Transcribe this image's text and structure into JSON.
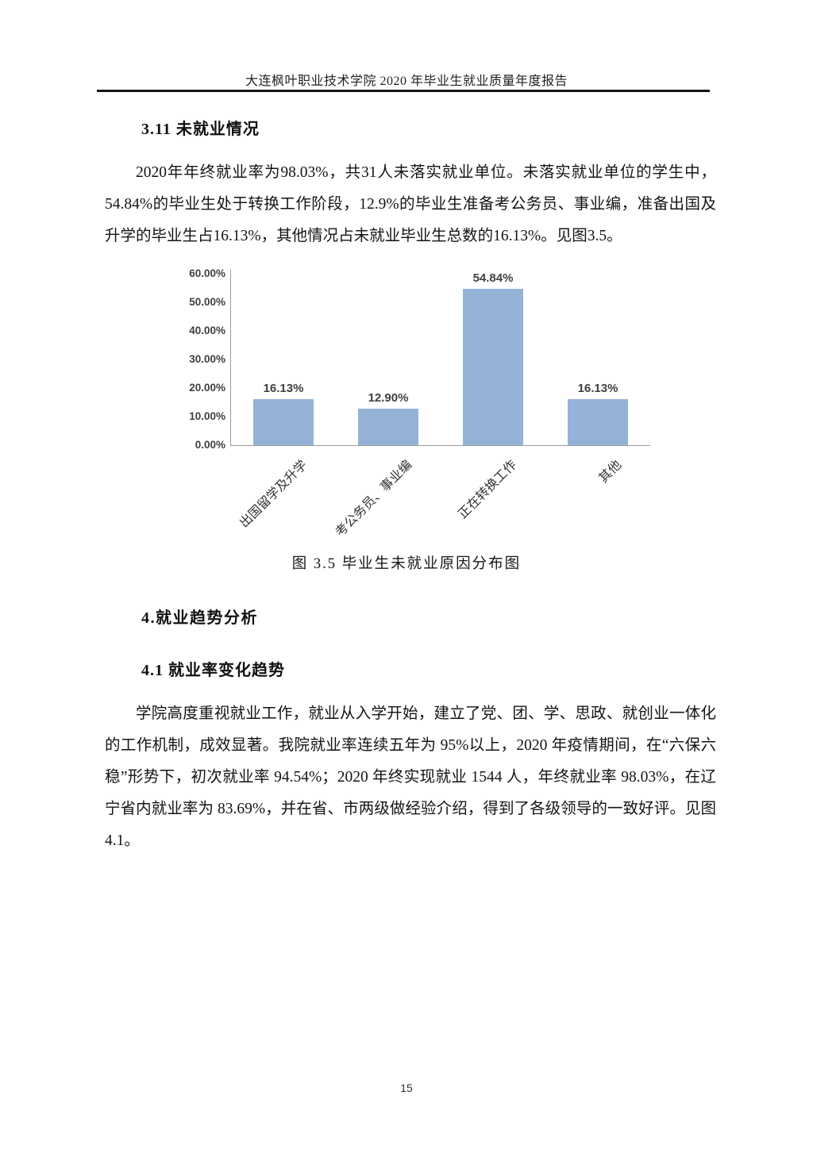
{
  "page": {
    "header": "大连枫叶职业技术学院 2020 年毕业生就业质量年度报告",
    "page_number": "15"
  },
  "sections": {
    "s311": {
      "heading": "3.11 未就业情况",
      "paragraph": "2020年年终就业率为98.03%，共31人未落实就业单位。未落实就业单位的学生中，54.84%的毕业生处于转换工作阶段，12.9%的毕业生准备考公务员、事业编，准备出国及升学的毕业生占16.13%，其他情况占未就业毕业生总数的16.13%。见图3.5。"
    },
    "s4": {
      "heading": "4.就业趋势分析"
    },
    "s41": {
      "heading": "4.1 就业率变化趋势",
      "paragraph": "学院高度重视就业工作，就业从入学开始，建立了党、团、学、思政、就创业一体化的工作机制，成效显著。我院就业率连续五年为 95%以上，2020 年疫情期间，在“六保六稳”形势下，初次就业率 94.54%；2020 年终实现就业 1544 人，年终就业率 98.03%，在辽宁省内就业率为 83.69%，并在省、市两级做经验介绍，得到了各级领导的一致好评。见图 4.1。"
    }
  },
  "chart_data": {
    "type": "bar",
    "title": "图 3.5 毕业生未就业原因分布图",
    "categories": [
      "出国留学及升学",
      "考公务员、事业编",
      "正在转换工作",
      "其他"
    ],
    "values": [
      16.13,
      12.9,
      54.84,
      16.13
    ],
    "data_labels": [
      "16.13%",
      "12.90%",
      "54.84%",
      "16.13%"
    ],
    "y_ticks": [
      "60.00%",
      "50.00%",
      "40.00%",
      "30.00%",
      "20.00%",
      "10.00%",
      "0.00%"
    ],
    "ylabel": "",
    "xlabel": "",
    "ylim": [
      0,
      60
    ],
    "grid": false,
    "legend_position": "none",
    "bar_color": "#95b3d7",
    "axis_color": "#9b9b9b",
    "label_color": "#3f3f3f"
  }
}
